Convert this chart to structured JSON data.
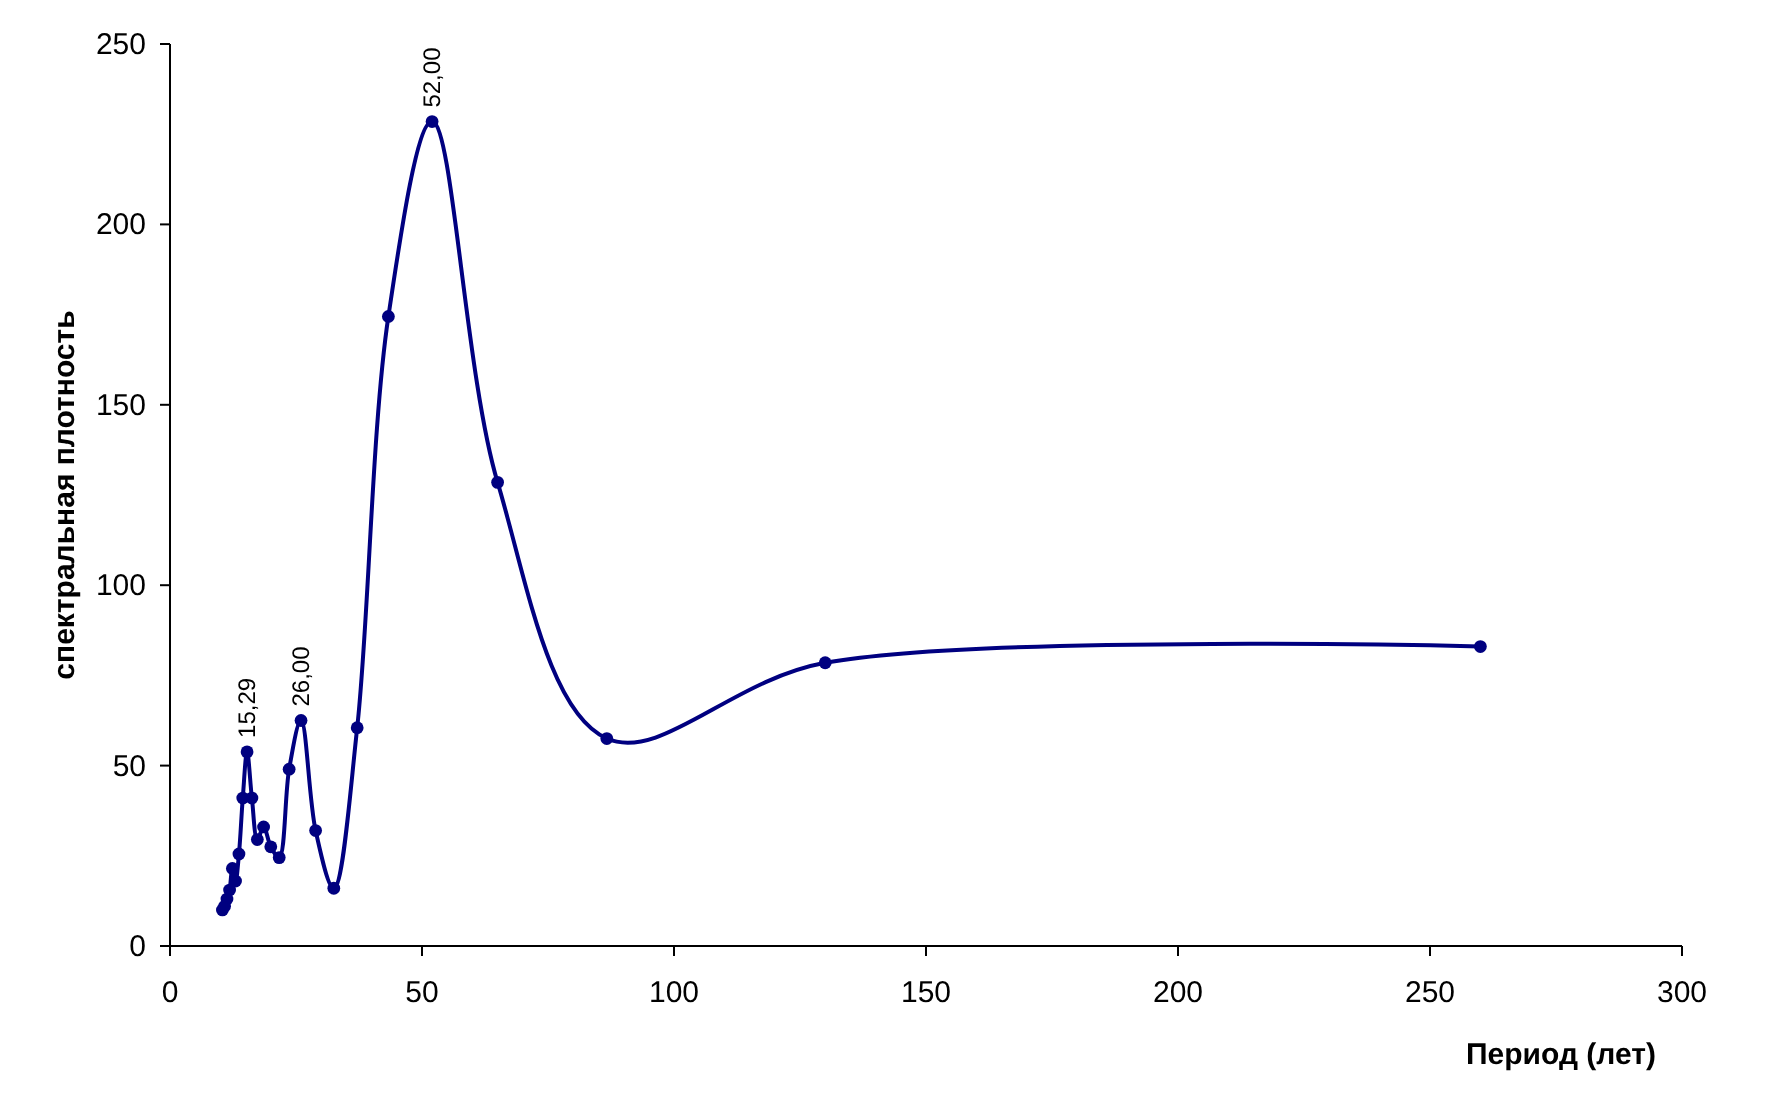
{
  "chart_data": {
    "type": "line",
    "xlabel": "Период (лет)",
    "ylabel": "спектральная плотность",
    "xlim": [
      0,
      300
    ],
    "xticks": [
      0,
      50,
      100,
      150,
      200,
      250,
      300
    ],
    "ylim": [
      0,
      250
    ],
    "yticks": [
      0,
      50,
      100,
      150,
      200,
      250
    ],
    "grid": false,
    "marker": "circle",
    "line_style": "solid",
    "series": [
      {
        "color": "#000080",
        "x": [
          10.4,
          10.83,
          11.3,
          11.82,
          12.38,
          13,
          13.68,
          14.44,
          15.29,
          16.25,
          17.33,
          18.57,
          20,
          21.67,
          23.64,
          26,
          28.89,
          32.5,
          37.14,
          43.33,
          52,
          65,
          86.67,
          130,
          260
        ],
        "values": [
          10,
          11,
          13,
          15.5,
          21.5,
          18,
          25.5,
          41,
          53.8,
          41,
          29.5,
          33,
          27.5,
          24.5,
          49,
          62.5,
          32,
          16,
          60.5,
          174.5,
          228.5,
          128.5,
          57.5,
          78.5,
          83
        ]
      }
    ],
    "annotations": [
      {
        "text": "15,29",
        "x": 15.29,
        "y": 53.8
      },
      {
        "text": "26,00",
        "x": 26,
        "y": 62.5
      },
      {
        "text": "52,00",
        "x": 52,
        "y": 228.5
      }
    ]
  }
}
